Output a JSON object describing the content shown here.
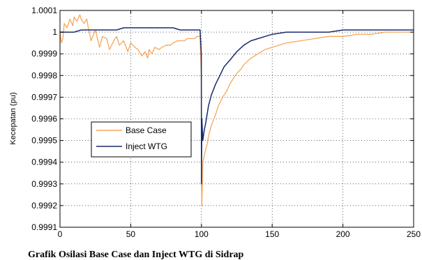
{
  "chart_data": {
    "type": "line",
    "title": "",
    "xlabel": "",
    "ylabel": "Kecepatan (pu)",
    "xlim": [
      0,
      250
    ],
    "ylim": [
      0.9991,
      1.0001
    ],
    "x_ticks": [
      0,
      50,
      100,
      150,
      200,
      250
    ],
    "x_tick_labels": [
      "0",
      "50",
      "100",
      "150",
      "200",
      "250"
    ],
    "y_ticks": [
      0.9991,
      0.9992,
      0.9993,
      0.9994,
      0.9995,
      0.9996,
      0.9997,
      0.9998,
      0.9999,
      1.0,
      1.0001
    ],
    "y_tick_labels": [
      "0.9991",
      "0.9992",
      "0.9993",
      "0.9994",
      "0.9995",
      "0.9996",
      "0.9997",
      "0.9998",
      "0.9999",
      "1",
      "1.0001"
    ],
    "grid": "dotted",
    "legend_position": "middle-left",
    "caption": "Grafik Osilasi Base Case dan Inject WTG di Sidrap",
    "series": [
      {
        "name": "Base Case",
        "color": "#f5a65b",
        "x": [
          0,
          1,
          2,
          3,
          5,
          7,
          9,
          10,
          12,
          14,
          15,
          17,
          19,
          20,
          22,
          25,
          28,
          30,
          33,
          35,
          38,
          40,
          42,
          45,
          48,
          50,
          53,
          55,
          58,
          60,
          62,
          63,
          65,
          67,
          70,
          72,
          75,
          78,
          80,
          83,
          85,
          88,
          90,
          93,
          95,
          97,
          99,
          99.9,
          100,
          100.3,
          101,
          102,
          103,
          104,
          105,
          107,
          110,
          112,
          115,
          118,
          120,
          123,
          125,
          128,
          130,
          135,
          140,
          145,
          150,
          160,
          170,
          180,
          190,
          200,
          210,
          220,
          230,
          240,
          250
        ],
        "y": [
          1.0,
          0.99995,
          0.99997,
          1.00004,
          1.00002,
          1.00006,
          1.00003,
          1.00007,
          1.00005,
          1.00008,
          1.00006,
          1.00004,
          1.00006,
          1.00002,
          0.99996,
          1.00001,
          0.99993,
          0.99998,
          0.99997,
          0.99992,
          0.99996,
          0.99998,
          0.99994,
          0.99996,
          0.99991,
          0.99995,
          0.99993,
          0.99992,
          0.99989,
          0.99991,
          0.99988,
          0.99992,
          0.9999,
          0.99993,
          0.99992,
          0.99993,
          0.99994,
          0.99994,
          0.99995,
          0.99996,
          0.99996,
          0.99996,
          0.99997,
          0.99997,
          0.99997,
          0.99998,
          0.99998,
          0.9998,
          0.9993,
          0.9992,
          0.9994,
          0.99943,
          0.99946,
          0.99948,
          0.99952,
          0.99957,
          0.99962,
          0.99966,
          0.9997,
          0.99973,
          0.99976,
          0.99979,
          0.99981,
          0.99983,
          0.99985,
          0.99988,
          0.9999,
          0.99992,
          0.99993,
          0.99995,
          0.99996,
          0.99997,
          0.99998,
          0.99998,
          0.99999,
          0.99999,
          1.0,
          1.0,
          1.0
        ]
      },
      {
        "name": "Inject WTG",
        "color": "#1a2a6c",
        "x": [
          0,
          5,
          10,
          15,
          20,
          25,
          30,
          35,
          40,
          45,
          50,
          55,
          60,
          65,
          70,
          75,
          80,
          85,
          90,
          95,
          99,
          99.9,
          100,
          100.3,
          101,
          102,
          103,
          104,
          105,
          107,
          110,
          113,
          116,
          120,
          125,
          130,
          135,
          140,
          145,
          150,
          160,
          170,
          180,
          190,
          200,
          210,
          220,
          230,
          240,
          250
        ],
        "y": [
          1.0,
          1.0,
          1.0,
          1.00001,
          1.00001,
          1.00001,
          1.00001,
          1.00001,
          1.00001,
          1.00002,
          1.00002,
          1.00002,
          1.00002,
          1.00002,
          1.00002,
          1.00002,
          1.00002,
          1.00001,
          1.00001,
          1.00001,
          1.00001,
          0.9999,
          0.9993,
          0.9996,
          0.9995,
          0.99955,
          0.99958,
          0.99962,
          0.99966,
          0.99971,
          0.99976,
          0.9998,
          0.99984,
          0.99987,
          0.99991,
          0.99994,
          0.99996,
          0.99997,
          0.99998,
          0.99999,
          1.0,
          1.0,
          1.0,
          1.0,
          1.00001,
          1.00001,
          1.00001,
          1.00001,
          1.00001,
          1.00001
        ]
      }
    ]
  }
}
